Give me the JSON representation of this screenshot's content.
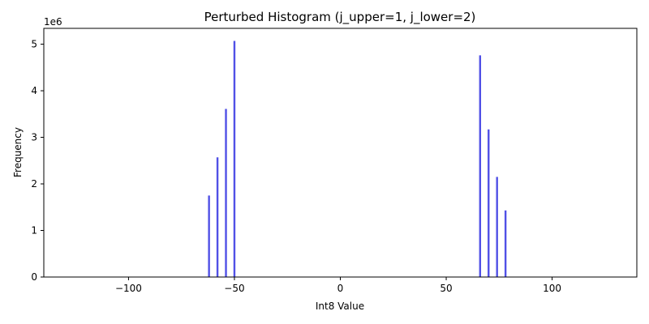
{
  "chart_data": {
    "type": "bar",
    "title": "Perturbed Histogram (j_upper=1, j_lower=2)",
    "xlabel": "Int8 Value",
    "ylabel": "Frequency",
    "y_offset_label": "1e6",
    "xlim": [
      -140,
      140
    ],
    "ylim": [
      0,
      5.34
    ],
    "y_scale": 1000000,
    "x_ticks": [
      -100,
      -50,
      0,
      50,
      100
    ],
    "x_tick_labels": [
      "−100",
      "−50",
      "0",
      "50",
      "100"
    ],
    "y_ticks": [
      0,
      1,
      2,
      3,
      4,
      5
    ],
    "y_tick_labels": [
      "0",
      "1",
      "2",
      "3",
      "4",
      "5"
    ],
    "grid": false,
    "bar_color": "#5050e6",
    "x": [
      -62,
      -58,
      -54,
      -50,
      66,
      70,
      74,
      78
    ],
    "values": [
      1.75,
      2.57,
      3.61,
      5.07,
      4.76,
      3.17,
      2.15,
      1.43
    ]
  }
}
